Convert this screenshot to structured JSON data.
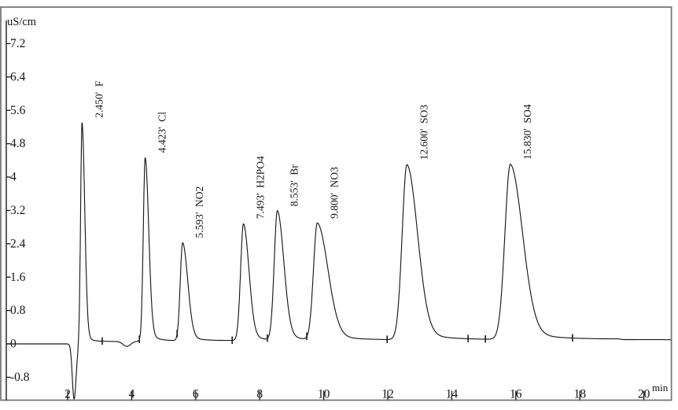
{
  "window": {
    "background": "#ffffff",
    "frame_color": "#787878",
    "ink_color": "#1a1a1a"
  },
  "chart_data": {
    "type": "line",
    "title": "",
    "description": "Ion chromatography chromatogram, conductivity detector trace with eight anion peaks",
    "y_axis": {
      "unit_label": "uS/cm",
      "ticks": [
        {
          "value": 7.2,
          "label": "7.2"
        },
        {
          "value": 6.4,
          "label": "6.4"
        },
        {
          "value": 5.6,
          "label": "5.6"
        },
        {
          "value": 4.8,
          "label": "4.8"
        },
        {
          "value": 4,
          "label": "4"
        },
        {
          "value": 3.2,
          "label": "3.2"
        },
        {
          "value": 2.4,
          "label": "2.4"
        },
        {
          "value": 1.6,
          "label": "1.6"
        },
        {
          "value": 0.8,
          "label": "0.8"
        },
        {
          "value": 0,
          "label": "0"
        },
        {
          "value": -0.8,
          "label": "-0.8"
        }
      ],
      "range": [
        -1.4,
        7.7
      ]
    },
    "x_axis": {
      "unit_label": "min",
      "ticks": [
        {
          "value": 2,
          "label": "2"
        },
        {
          "value": 4,
          "label": "4"
        },
        {
          "value": 6,
          "label": "6"
        },
        {
          "value": 8,
          "label": "8"
        },
        {
          "value": 10,
          "label": "10"
        },
        {
          "value": 12,
          "label": "12"
        },
        {
          "value": 14,
          "label": "14"
        },
        {
          "value": 16,
          "label": "16"
        },
        {
          "value": 18,
          "label": "18"
        },
        {
          "value": 20,
          "label": "20"
        }
      ],
      "range": [
        0.08,
        20.85
      ]
    },
    "grid": "off",
    "legend": "none",
    "peak_label_format": "{rt}' {analyte}",
    "peaks": [
      {
        "rt_min": "2.450",
        "analyte": "F",
        "height_uScm": 5.3,
        "sigma_lead_min": 0.045,
        "sigma_tail_min": 0.085
      },
      {
        "rt_min": "4.423",
        "analyte": "Cl",
        "height_uScm": 4.4,
        "sigma_lead_min": 0.06,
        "sigma_tail_min": 0.11
      },
      {
        "rt_min": "5.593",
        "analyte": "NO2",
        "height_uScm": 2.35,
        "sigma_lead_min": 0.075,
        "sigma_tail_min": 0.16
      },
      {
        "rt_min": "7.493",
        "analyte": "H2PO4",
        "height_uScm": 2.8,
        "sigma_lead_min": 0.09,
        "sigma_tail_min": 0.17
      },
      {
        "rt_min": "8.553",
        "analyte": "Br",
        "height_uScm": 3.1,
        "sigma_lead_min": 0.1,
        "sigma_tail_min": 0.2
      },
      {
        "rt_min": "9.800",
        "analyte": "NO3",
        "height_uScm": 2.8,
        "sigma_lead_min": 0.12,
        "sigma_tail_min": 0.33
      },
      {
        "rt_min": "12.600",
        "analyte": "SO3",
        "height_uScm": 4.2,
        "sigma_lead_min": 0.15,
        "sigma_tail_min": 0.33
      },
      {
        "rt_min": "15.830",
        "analyte": "SO4",
        "height_uScm": 4.2,
        "sigma_lead_min": 0.17,
        "sigma_tail_min": 0.38
      }
    ],
    "injection_dip": {
      "time_min": 2.2,
      "depth_uScm": -1.32,
      "sigma_lead_min": 0.055,
      "sigma_tail_min": 0.065
    },
    "baseline_artifact_dip": {
      "time_min": 3.85,
      "depth_uScm": -0.12,
      "sigma_min": 0.12
    },
    "integration_marks_min": [
      3.08,
      4.24,
      5.42,
      7.14,
      8.24,
      9.47,
      11.98,
      14.51,
      15.05,
      17.77
    ],
    "baseline_drift_points": [
      [
        2.35,
        0
      ],
      [
        3.1,
        0.055
      ],
      [
        5.5,
        0.075
      ],
      [
        12,
        0.095
      ],
      [
        19.2,
        0.115
      ],
      [
        19.35,
        0.1
      ],
      [
        21,
        0.1
      ]
    ]
  }
}
